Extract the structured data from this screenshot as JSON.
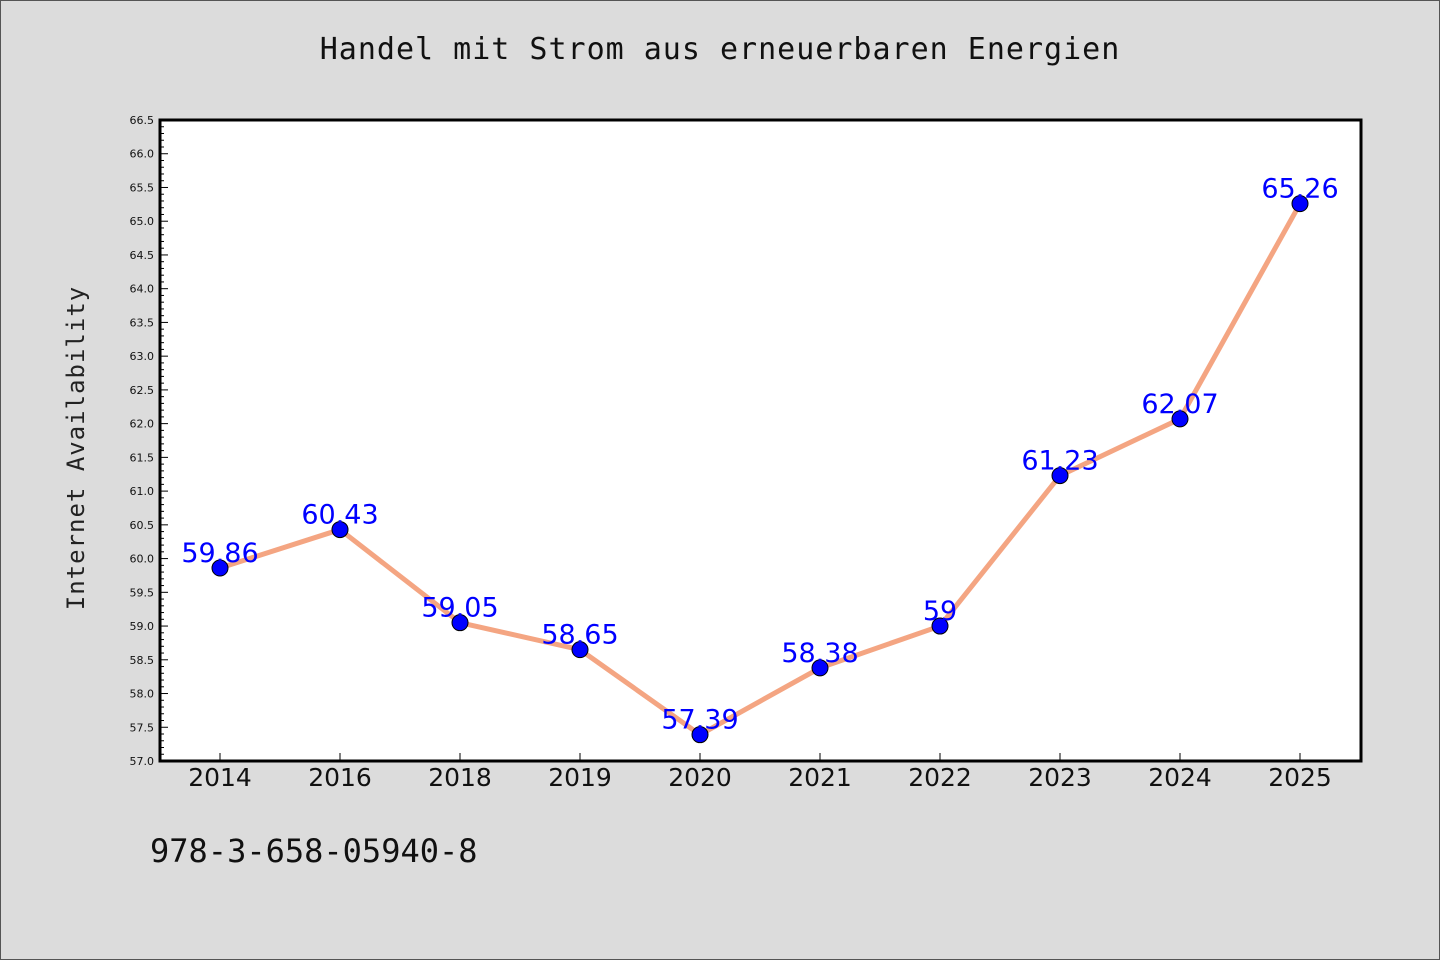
{
  "isbn": "978-3-658-05940-8",
  "chart_data": {
    "type": "line",
    "title": "Handel mit Strom aus erneuerbaren Energien",
    "xlabel": "",
    "ylabel": "Internet Availability",
    "categories": [
      "2014",
      "2016",
      "2018",
      "2019",
      "2020",
      "2021",
      "2022",
      "2023",
      "2024",
      "2025"
    ],
    "values": [
      59.86,
      60.43,
      59.05,
      58.65,
      57.39,
      58.38,
      59,
      61.23,
      62.07,
      65.26
    ],
    "data_labels": [
      "59.86",
      "60.43",
      "59.05",
      "58.65",
      "57.39",
      "58.38",
      "59",
      "61.23",
      "62.07",
      "65.26"
    ],
    "ylim": [
      57.0,
      66.5
    ],
    "yticks": [
      "57.0",
      "57.5",
      "58.0",
      "58.5",
      "59.0",
      "59.5",
      "60.0",
      "60.5",
      "61.0",
      "61.5",
      "62.0",
      "62.5",
      "63.0",
      "63.5",
      "64.0",
      "64.5",
      "65.0",
      "65.5",
      "66.0",
      "66.5"
    ],
    "grid": false,
    "legend": "none",
    "colors": {
      "line": "#f4a582",
      "marker": "#0000ff",
      "label": "#0000ff",
      "background": "#dcdcdc",
      "plot_area": "#ffffff"
    }
  }
}
